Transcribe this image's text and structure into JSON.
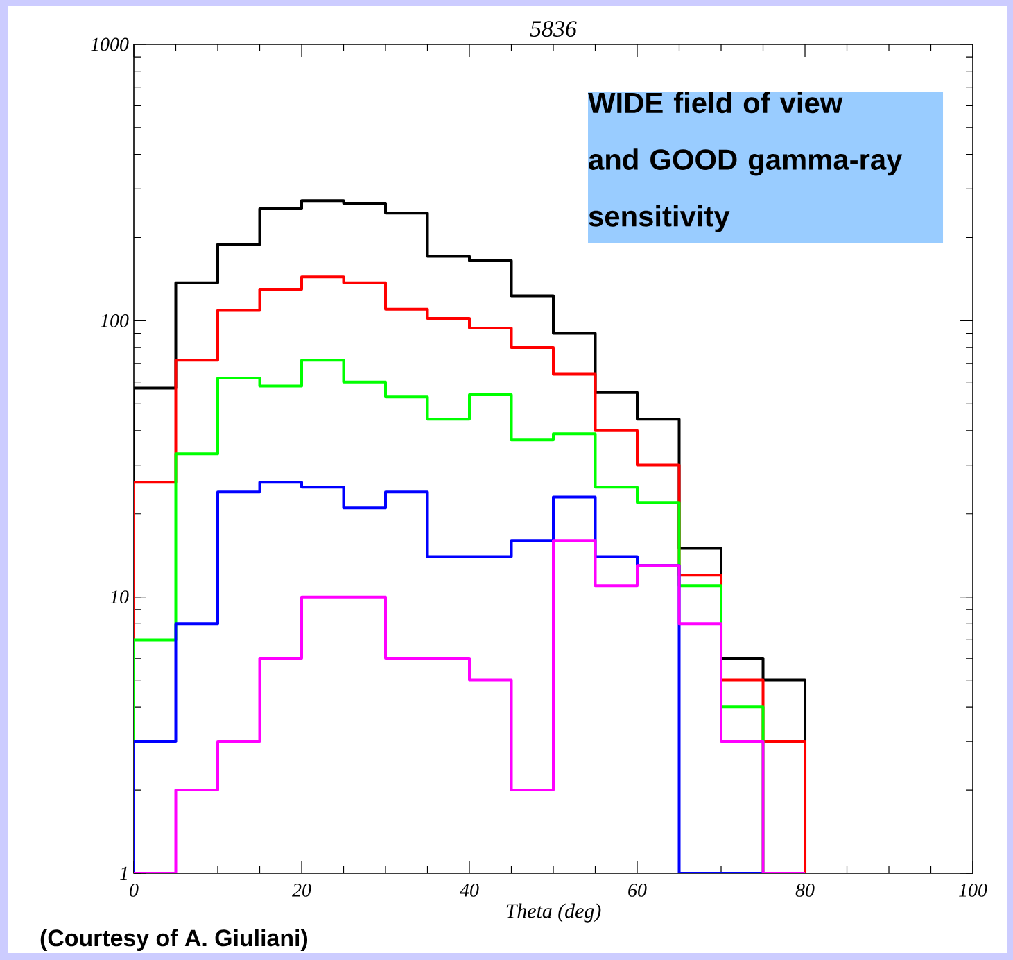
{
  "chart_data": {
    "type": "histogram",
    "title": "5836",
    "xlabel": "Theta (deg)",
    "bins": [
      0,
      5,
      10,
      15,
      20,
      25,
      30,
      35,
      40,
      45,
      50,
      55,
      60,
      65,
      70,
      75,
      80
    ],
    "series": [
      {
        "color": "#000000",
        "values": [
          57,
          137,
          189,
          254,
          272,
          266,
          245,
          171,
          165,
          123,
          90,
          55,
          44,
          15,
          6,
          5
        ]
      },
      {
        "color": "#ff0000",
        "values": [
          26,
          72,
          109,
          130,
          144,
          137,
          110,
          102,
          94,
          80,
          64,
          40,
          30,
          12,
          5,
          3
        ]
      },
      {
        "color": "#00ff00",
        "values": [
          7,
          33,
          62,
          58,
          72,
          60,
          53,
          44,
          54,
          37,
          39,
          25,
          22,
          11,
          4,
          null
        ]
      },
      {
        "color": "#0000ff",
        "values": [
          3,
          8,
          24,
          26,
          25,
          21,
          24,
          14,
          14,
          16,
          23,
          14,
          13,
          null,
          null,
          null
        ]
      },
      {
        "color": "#ff00ff",
        "values": [
          null,
          2,
          3,
          6,
          10,
          10,
          6,
          6,
          5,
          2,
          16,
          11,
          13,
          8,
          3,
          null
        ]
      }
    ],
    "log": "y",
    "xlim": [
      0,
      100
    ],
    "ylim": [
      1,
      1000
    ],
    "xticks": [
      0,
      20,
      40,
      60,
      80,
      100
    ],
    "yticks": [
      1,
      10,
      100,
      1000
    ],
    "annotations": [
      "WIDE field of view and GOOD gamma-ray sensitivity",
      "(Courtesy of A. Giuliani)"
    ]
  }
}
